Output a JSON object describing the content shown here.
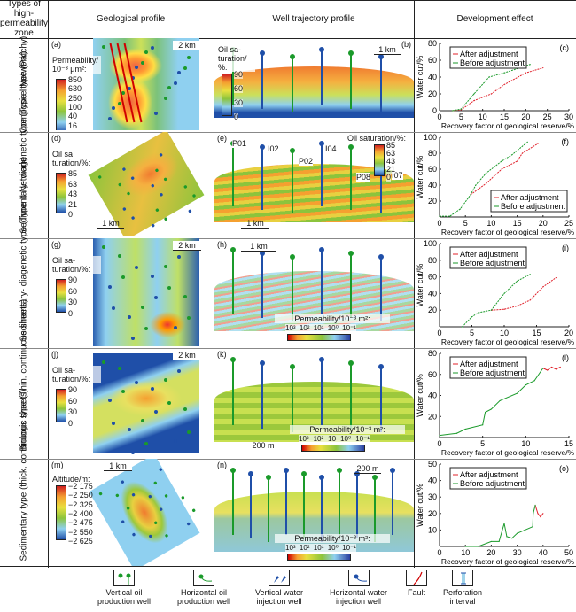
{
  "header": {
    "types": "Types of high-permeability zone",
    "geo": "Geological profile",
    "well": "Well trajectory profile",
    "dev": "Development effect"
  },
  "rows": [
    {
      "label": "Composite type (Patchy)",
      "geo_panel": "(a)",
      "well_panel": "(b)",
      "geo_scale": "2 km",
      "well_scale": "1 km",
      "geo_cbar": {
        "title": "Permeability/ 10⁻³ μm²:",
        "ticks": [
          "850",
          "630",
          "250",
          "100",
          "40",
          "16",
          "6"
        ]
      },
      "well_cbar": {
        "title": "Oil sa- turation/ %:",
        "ticks": [
          "90",
          "60",
          "30",
          "0"
        ]
      }
    },
    {
      "label": "Sedimentary- diagenetic type (Type I Network)",
      "geo_panel": "(d)",
      "well_panel": "(e)",
      "geo_scale": "1 km",
      "well_scale": "1 km",
      "geo_cbar": {
        "title": "Oil sa turation/%:",
        "ticks": [
          "85",
          "63",
          "43",
          "21",
          "0"
        ]
      },
      "well_cbar": {
        "title": "Oil saturation/%:",
        "ticks": [
          "85",
          "63",
          "43",
          "21",
          "0"
        ]
      },
      "wells": [
        "P01",
        "I02",
        "P02",
        "I04",
        "P08",
        "I07"
      ]
    },
    {
      "label": "Sedimentary- diagenetic type (Type II Network)",
      "geo_panel": "(g)",
      "well_panel": "(h)",
      "geo_scale": "2 km",
      "well_scale": "1 km",
      "geo_cbar": {
        "title": "Oil sa- turation/%:",
        "ticks": [
          "90",
          "60",
          "30",
          "0"
        ]
      },
      "well_cbar": {
        "title": "Permeability/10⁻³ m²:",
        "ticks": [
          "10³",
          "10²",
          "10¹",
          "10⁰",
          "10⁻¹"
        ]
      }
    },
    {
      "label": "Biologic type (Thin. continuous sheets)",
      "geo_panel": "(j)",
      "well_panel": "(k)",
      "geo_scale": "2 km",
      "well_scale": "200 m",
      "geo_cbar": {
        "title": "Oil sa- turation/%:",
        "ticks": [
          "90",
          "60",
          "30",
          "0"
        ]
      },
      "well_cbar": {
        "title": "Permeability/10⁻³ m²:",
        "ticks": [
          "10³",
          "10²",
          "10",
          "10⁰",
          "10⁻¹"
        ]
      }
    },
    {
      "label": "Sedimentary type (thick. continuous sheets)",
      "geo_panel": "(m)",
      "well_panel": "(n)",
      "geo_scale": "1 km",
      "well_scale": "200 m",
      "geo_cbar": {
        "title": "Altitude/m:",
        "ticks": [
          "−2 175",
          "−2 250",
          "−2 325",
          "−2 400",
          "−2 475",
          "−2 550",
          "−2 625"
        ]
      },
      "well_cbar": {
        "title": "Permeability/10⁻³ m²:",
        "ticks": [
          "10³",
          "10²",
          "10¹",
          "10⁰",
          "10⁻¹"
        ]
      }
    }
  ],
  "legend": [
    {
      "icon": "vertical-oil-production-well-icon",
      "label": "Vertical oil production well"
    },
    {
      "icon": "horizontal-oil-production-well-icon",
      "label": "Horizontal oil production well"
    },
    {
      "icon": "vertical-water-injection-well-icon",
      "label": "Vertical water injection well"
    },
    {
      "icon": "horizontal-water-injection-well-icon",
      "label": "Horizontal water injection well"
    },
    {
      "icon": "fault-icon",
      "label": "Fault"
    },
    {
      "icon": "perforation-interval-icon",
      "label": "Perforation interval"
    }
  ],
  "colors": {
    "after": "#e0202a",
    "before": "#1a9a2a",
    "oil_well": "#1a9a2a",
    "water_well": "#1f4fa8",
    "fault": "#d00000"
  },
  "chart_data": [
    {
      "type": "line",
      "panel": "(c)",
      "xlabel": "Recovery factor of geological reserve/%",
      "ylabel": "Water cut/%",
      "xlim": [
        0,
        30
      ],
      "ylim": [
        0,
        80
      ],
      "xticks": [
        0,
        5,
        10,
        15,
        20,
        25,
        30
      ],
      "yticks": [
        0,
        20,
        40,
        60,
        80
      ],
      "legend": "top-left",
      "series": [
        {
          "name": "After adjustment",
          "color": "#e0202a",
          "x": [
            3,
            5,
            8,
            12,
            15,
            20,
            24
          ],
          "y": [
            0,
            1,
            12,
            20,
            31,
            45,
            51
          ]
        },
        {
          "name": "Before adjustment",
          "color": "#1a9a2a",
          "x": [
            3,
            5,
            8,
            11.5,
            15,
            21
          ],
          "y": [
            0,
            2,
            20,
            40,
            45,
            55
          ]
        }
      ]
    },
    {
      "type": "line",
      "panel": "(f)",
      "xlabel": "Recovery factor of geological reserve/%",
      "ylabel": "Water cut/%",
      "xlim": [
        0,
        25
      ],
      "ylim": [
        0,
        100
      ],
      "xticks": [
        0,
        5,
        10,
        15,
        20,
        25
      ],
      "yticks": [
        20,
        40,
        60,
        80,
        100
      ],
      "legend": "bottom-right",
      "series": [
        {
          "name": "After adjustment",
          "color": "#e0202a",
          "x": [
            6,
            9,
            12,
            15,
            16,
            19
          ],
          "y": [
            28,
            42,
            60,
            70,
            80,
            92
          ]
        },
        {
          "name": "Before adjustment",
          "color": "#1a9a2a",
          "x": [
            0,
            2,
            4,
            6,
            7,
            9,
            12,
            14,
            17
          ],
          "y": [
            1,
            1,
            10,
            28,
            40,
            55,
            70,
            78,
            94
          ]
        }
      ]
    },
    {
      "type": "line",
      "panel": "(i)",
      "xlabel": "Recovery factor of geological reserve/%",
      "ylabel": "Water cut/%",
      "xlim": [
        0,
        20
      ],
      "ylim": [
        0,
        100
      ],
      "xticks": [
        0,
        5,
        10,
        15,
        20
      ],
      "yticks": [
        20,
        40,
        60,
        80,
        100
      ],
      "legend": "top-left",
      "series": [
        {
          "name": "After adjustment",
          "color": "#e0202a",
          "x": [
            8,
            10,
            12,
            14,
            16,
            18
          ],
          "y": [
            20,
            21,
            25,
            32,
            48,
            59
          ]
        },
        {
          "name": "Before adjustment",
          "color": "#1a9a2a",
          "x": [
            3.5,
            5,
            6,
            8,
            10,
            12,
            14
          ],
          "y": [
            0,
            12,
            17,
            20,
            40,
            55,
            63
          ]
        }
      ]
    },
    {
      "type": "line",
      "panel": "(l)",
      "xlabel": "Recovery factor of geological reserve/%",
      "ylabel": "Water cut/%",
      "xlim": [
        0,
        15
      ],
      "ylim": [
        0,
        80
      ],
      "xticks": [
        0,
        5,
        10,
        15
      ],
      "yticks": [
        20,
        40,
        60,
        80
      ],
      "legend": "top-left",
      "series": [
        {
          "name": "After adjustment",
          "color": "#e0202a",
          "x": [
            12,
            12.5,
            13,
            13.5,
            14
          ],
          "y": [
            66,
            64,
            67,
            65,
            67
          ]
        },
        {
          "name": "Before adjustment",
          "color": "#1a9a2a",
          "x": [
            0,
            2,
            3,
            5,
            5.3,
            6,
            7,
            9,
            10,
            11,
            12
          ],
          "y": [
            2,
            4,
            8,
            12,
            24,
            27,
            35,
            42,
            50,
            54,
            66
          ]
        }
      ]
    },
    {
      "type": "line",
      "panel": "(o)",
      "xlabel": "Recovery factor of geological reserve/%",
      "ylabel": "Water cut/%",
      "xlim": [
        0,
        50
      ],
      "ylim": [
        0,
        50
      ],
      "xticks": [
        0,
        10,
        20,
        30,
        40,
        50
      ],
      "yticks": [
        10,
        20,
        30,
        40,
        50
      ],
      "legend": "top-left",
      "series": [
        {
          "name": "After adjustment",
          "color": "#e0202a",
          "x": [
            37,
            38,
            39,
            40
          ],
          "y": [
            25,
            20,
            18,
            20
          ]
        },
        {
          "name": "Before adjustment",
          "color": "#1a9a2a",
          "x": [
            10,
            15,
            20,
            23,
            25,
            26,
            28,
            30,
            33,
            36,
            36.2,
            37
          ],
          "y": [
            0,
            0,
            3,
            3,
            14,
            6,
            5,
            8,
            10,
            12,
            20,
            25
          ]
        }
      ]
    }
  ]
}
